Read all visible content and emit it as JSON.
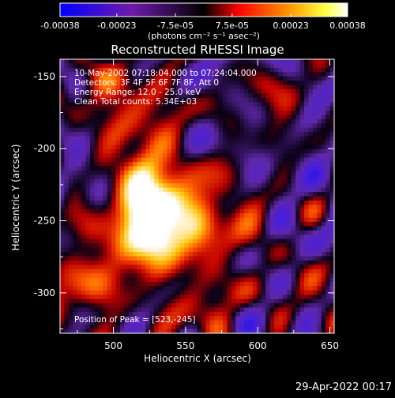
{
  "chart_data": {
    "type": "heatmap",
    "title": "Reconstructed RHESSI Image",
    "xlabel": "Heliocentric X (arcsec)",
    "ylabel": "Heliocentric Y (arcsec)",
    "xlim": [
      463,
      653
    ],
    "ylim": [
      -328,
      -138
    ],
    "x_ticks": [
      "500",
      "550",
      "600",
      "650"
    ],
    "x_tick_values": [
      500,
      550,
      600,
      650
    ],
    "y_ticks": [
      "-150",
      "-200",
      "-250",
      "-300"
    ],
    "y_tick_values": [
      -150,
      -200,
      -250,
      -300
    ],
    "colorbar": {
      "ticks": [
        "-0.00038",
        "-0.00023",
        "-7.5e-05",
        "7.5e-05",
        "0.00023",
        "0.00038"
      ],
      "tick_values": [
        -0.00038,
        -0.00023,
        -7.5e-05,
        7.5e-05,
        0.00023,
        0.00038
      ],
      "range": [
        -0.00038,
        0.00038
      ],
      "unit_label": "(photons cm⁻² s⁻¹ asec⁻²)"
    },
    "annotations": [
      "10-May-2002 07:18:04.000 to 07:24:04.000",
      "Detectors: 3F 4F 5F 6F 7F 8F, Att 0",
      "Energy Range: 12.0 - 25.0 keV",
      "Clean     Total counts: 5.34E+03"
    ],
    "peak_label": "Position of Peak = [523,-245]",
    "peak": {
      "x": 523,
      "y": -245
    },
    "colors": {
      "negative": "#0000ff",
      "zero": "#000000",
      "positive_low": "#ff0000",
      "positive_high": "#ffffff"
    }
  },
  "timestamp": "29-Apr-2022 00:17"
}
